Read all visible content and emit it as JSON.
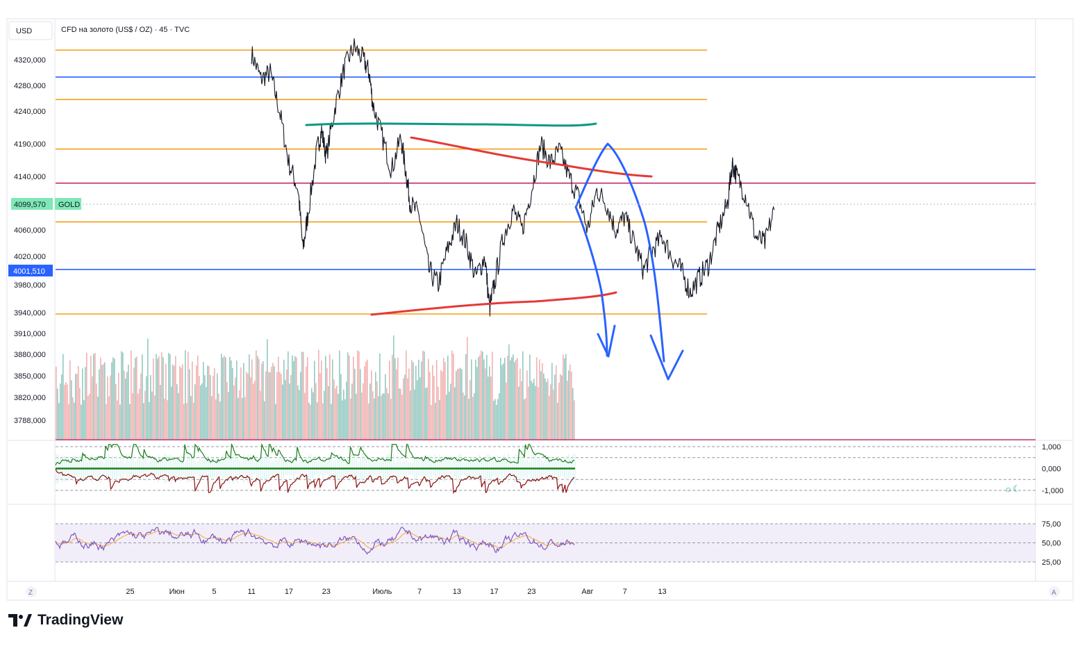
{
  "header": {
    "currency_button": "USD",
    "instrument_title": "CFD на золото (US$ / OZ) · 45 · TVC",
    "price_badge": "4099,570",
    "symbol_badge": "GOLD",
    "level_badge": "4001,510"
  },
  "footer": {
    "zoom_button": "Z",
    "auto_button": "A",
    "brand": "TradingView"
  },
  "colors": {
    "orange_levels": "#f59d16",
    "blue_levels": "#2962ff",
    "magenta_level": "#c2185b",
    "teal_line": "#089981",
    "red_drawing": "#e53935",
    "blue_drawing": "#2962ff",
    "price_badge_bg": "#7ee8b6",
    "level_badge_bg": "#2962ff",
    "volume_up": "#80bfb6",
    "volume_down": "#f0a3a3",
    "osc_green": "#1b7d1b",
    "osc_red": "#8b1010",
    "rsi_line": "#7e57c2",
    "rsi_signal": "#f4b450",
    "rsi_band": "#ede7f6"
  },
  "chart_data": {
    "type": "line",
    "title": "CFD на золото (US$ / OZ) · 45 · TVC",
    "xlabel": "",
    "ylabel": "",
    "ylim": [
      3760,
      4370
    ],
    "y_ticks": [
      "4320,000",
      "4280,000",
      "4240,000",
      "4190,000",
      "4140,000",
      "4060,000",
      "4020,000",
      "3980,000",
      "3940,000",
      "3910,000",
      "3880,000",
      "3850,000",
      "3820,000",
      "3788,000"
    ],
    "y_tick_values": [
      4320,
      4280,
      4240,
      4190,
      4140,
      4060,
      4020,
      3980,
      3940,
      3910,
      3880,
      3850,
      3820,
      3788
    ],
    "x_ticks": [
      "25",
      "Июн",
      "5",
      "11",
      "17",
      "23",
      "Июль",
      "7",
      "13",
      "17",
      "23",
      "Авг",
      "7",
      "13"
    ],
    "x_tick_index": [
      3,
      8,
      12,
      16,
      20,
      24,
      30,
      34,
      38,
      42,
      46,
      52,
      56,
      60
    ],
    "x_index_range": [
      -5,
      100
    ],
    "horizontal_levels": [
      {
        "price": 4335,
        "color": "orange",
        "extent": "short"
      },
      {
        "price": 4293,
        "color": "blue",
        "extent": "full"
      },
      {
        "price": 4258,
        "color": "orange",
        "extent": "short"
      },
      {
        "price": 4182,
        "color": "orange",
        "extent": "short"
      },
      {
        "price": 4130,
        "color": "magenta",
        "extent": "full"
      },
      {
        "price": 4072,
        "color": "orange",
        "extent": "short"
      },
      {
        "price": 4001.51,
        "color": "blue",
        "extent": "full"
      },
      {
        "price": 3938,
        "color": "orange",
        "extent": "short"
      }
    ],
    "price_keypoints": [
      [
        16.0,
        4330
      ],
      [
        17.0,
        4290
      ],
      [
        18.0,
        4300
      ],
      [
        19.0,
        4240
      ],
      [
        20.0,
        4160
      ],
      [
        21.0,
        4120
      ],
      [
        21.5,
        4030
      ],
      [
        22.0,
        4080
      ],
      [
        23.0,
        4180
      ],
      [
        23.5,
        4210
      ],
      [
        24.0,
        4170
      ],
      [
        25.0,
        4250
      ],
      [
        26.0,
        4310
      ],
      [
        27.0,
        4340
      ],
      [
        28.0,
        4320
      ],
      [
        28.6,
        4300
      ],
      [
        29.0,
        4250
      ],
      [
        30.0,
        4200
      ],
      [
        31.0,
        4150
      ],
      [
        32.0,
        4200
      ],
      [
        32.6,
        4140
      ],
      [
        33.0,
        4100
      ],
      [
        34.0,
        4080
      ],
      [
        35.0,
        4000
      ],
      [
        36.0,
        3980
      ],
      [
        37.0,
        4030
      ],
      [
        38.0,
        4070
      ],
      [
        39.0,
        4040
      ],
      [
        40.0,
        3990
      ],
      [
        41.0,
        4020
      ],
      [
        41.5,
        3945
      ],
      [
        42.0,
        3980
      ],
      [
        43.0,
        4050
      ],
      [
        44.0,
        4090
      ],
      [
        45.0,
        4060
      ],
      [
        46.0,
        4120
      ],
      [
        47.0,
        4190
      ],
      [
        48.0,
        4160
      ],
      [
        49.0,
        4180
      ],
      [
        50.0,
        4140
      ],
      [
        51.0,
        4110
      ],
      [
        52.0,
        4060
      ],
      [
        53.0,
        4120
      ],
      [
        54.0,
        4100
      ],
      [
        55.0,
        4060
      ],
      [
        56.0,
        4080
      ],
      [
        57.0,
        4040
      ],
      [
        58.0,
        4000
      ],
      [
        59.0,
        4030
      ],
      [
        60.0,
        4050
      ],
      [
        61.0,
        4020
      ],
      [
        62.0,
        4000
      ],
      [
        63.0,
        3970
      ],
      [
        64.0,
        3990
      ],
      [
        65.0,
        4010
      ],
      [
        66.0,
        4060
      ],
      [
        67.0,
        4100
      ],
      [
        67.5,
        4160
      ],
      [
        68.0,
        4140
      ],
      [
        69.0,
        4110
      ],
      [
        70.0,
        4050
      ],
      [
        71.0,
        4040
      ],
      [
        72.0,
        4090
      ]
    ],
    "series": [
      {
        "values_ref": "price_keypoints"
      }
    ],
    "grid": false,
    "legend": "none",
    "volume_panel": {
      "note_hidden": false
    },
    "oscillator_panel": {
      "ylim": [
        -1.2,
        1.2
      ],
      "y_ticks": [
        "1,000",
        "0,000",
        "-1,000"
      ],
      "y_tick_values": [
        1,
        0,
        -1
      ]
    },
    "rsi_panel": {
      "ylim": [
        15,
        85
      ],
      "y_ticks": [
        "75,00",
        "50,00",
        "25,00"
      ],
      "y_tick_values": [
        75,
        50,
        25
      ],
      "band": [
        30,
        70
      ]
    }
  }
}
